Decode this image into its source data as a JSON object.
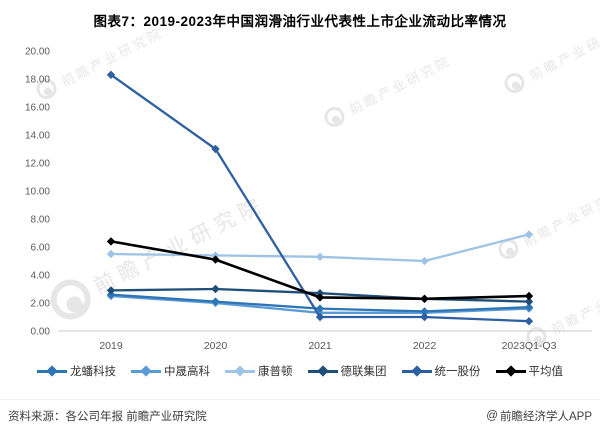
{
  "title": "图表7：2019-2023年中国润滑油行业代表性上市企业流动比率情况",
  "chart_data": {
    "type": "line",
    "categories": [
      "2019",
      "2020",
      "2021",
      "2022",
      "2023Q1-Q3"
    ],
    "series": [
      {
        "name": "龙蟠科技",
        "color": "#2E75B6",
        "values": [
          2.6,
          2.1,
          1.6,
          1.4,
          1.7
        ]
      },
      {
        "name": "中晟高科",
        "color": "#5B9BD5",
        "values": [
          2.5,
          2.0,
          1.3,
          1.3,
          1.6
        ]
      },
      {
        "name": "康普顿",
        "color": "#9DC3E6",
        "values": [
          5.5,
          5.4,
          5.3,
          5.0,
          6.9
        ]
      },
      {
        "name": "德联集团",
        "color": "#1F4E79",
        "values": [
          2.9,
          3.0,
          2.7,
          2.3,
          2.1
        ]
      },
      {
        "name": "统一股份",
        "color": "#2E5FA3",
        "values": [
          18.3,
          13.0,
          1.0,
          1.0,
          0.7
        ]
      },
      {
        "name": "平均值",
        "color": "#000000",
        "values": [
          6.4,
          5.1,
          2.4,
          2.3,
          2.5
        ]
      }
    ],
    "ylim": [
      0,
      20
    ],
    "ytick_step": 2,
    "yticks": [
      "0.00",
      "2.00",
      "4.00",
      "6.00",
      "8.00",
      "10.00",
      "12.00",
      "14.00",
      "16.00",
      "18.00",
      "20.00"
    ],
    "grid": false,
    "legend_position": "bottom",
    "marker": "diamond",
    "axis_color": "#c9c9c9",
    "tick_label_color": "#595959"
  },
  "watermark": {
    "text": "前瞻产业研究院"
  },
  "footer": {
    "source": "资料来源：各公司年报 前瞻产业研究院",
    "brand_prefix": "@",
    "brand": "前瞻经济学人APP"
  }
}
